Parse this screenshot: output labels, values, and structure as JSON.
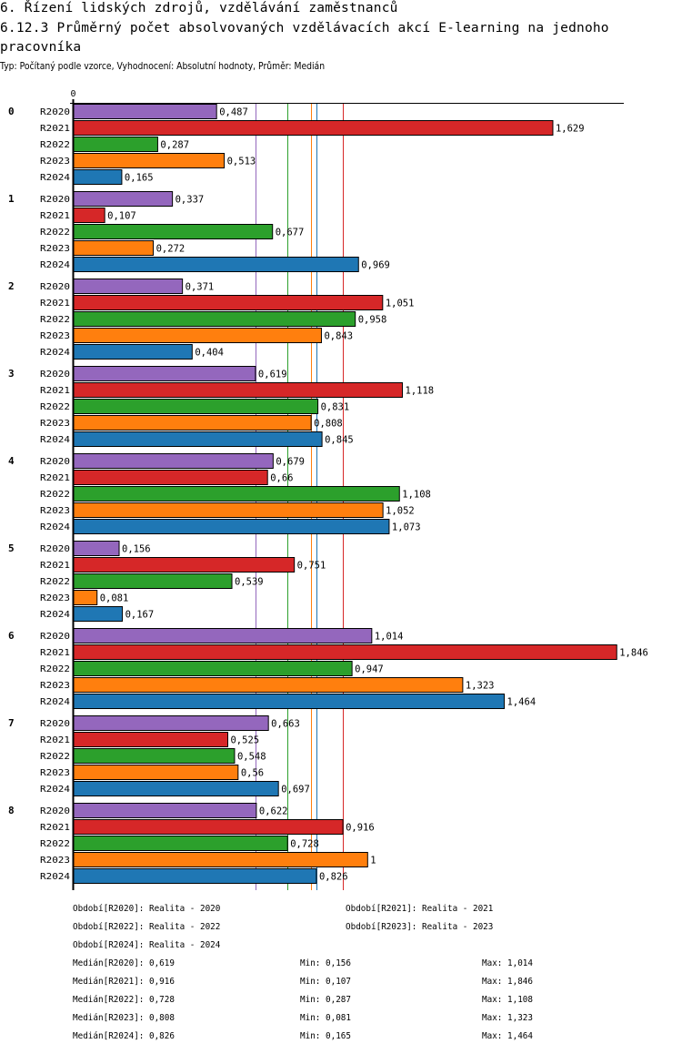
{
  "header": {
    "title": "6. Řízení lidských zdrojů, vzdělávání zaměstnanců",
    "subtitle": "6.12.3 Průměrný počet absolvovaných vzdělávacích akcí E-learning na jednoho pracovníka",
    "meta": "Typ: Počítaný podle vzorce, Vyhodnocení: Absolutní hodnoty, Průměr: Medián"
  },
  "chart_data": {
    "type": "bar",
    "orientation": "horizontal",
    "title": "6.12.3 Průměrný počet absolvovaných vzdělávacích akcí E-learning na jednoho pracovníka",
    "xlabel": "",
    "ylabel": "",
    "axis_zero_label": "0",
    "xlim": [
      0,
      1.87
    ],
    "categories": [
      "0",
      "1",
      "2",
      "3",
      "4",
      "5",
      "6",
      "7",
      "8"
    ],
    "series": [
      {
        "name": "R2020",
        "color": "#9467bd",
        "values": [
          0.487,
          0.337,
          0.371,
          0.619,
          0.679,
          0.156,
          1.014,
          0.663,
          0.622
        ],
        "labels": [
          "0,487",
          "0,337",
          "0,371",
          "0,619",
          "0,679",
          "0,156",
          "1,014",
          "0,663",
          "0,622"
        ]
      },
      {
        "name": "R2021",
        "color": "#d62728",
        "values": [
          1.629,
          0.107,
          1.051,
          1.118,
          0.66,
          0.751,
          1.846,
          0.525,
          0.916
        ],
        "labels": [
          "1,629",
          "0,107",
          "1,051",
          "1,118",
          "0,66",
          "0,751",
          "1,846",
          "0,525",
          "0,916"
        ]
      },
      {
        "name": "R2022",
        "color": "#2ca02c",
        "values": [
          0.287,
          0.677,
          0.958,
          0.831,
          1.108,
          0.539,
          0.947,
          0.548,
          0.728
        ],
        "labels": [
          "0,287",
          "0,677",
          "0,958",
          "0,831",
          "1,108",
          "0,539",
          "0,947",
          "0,548",
          "0,728"
        ]
      },
      {
        "name": "R2023",
        "color": "#ff7f0e",
        "values": [
          0.513,
          0.272,
          0.843,
          0.808,
          1.052,
          0.081,
          1.323,
          0.56,
          1
        ],
        "labels": [
          "0,513",
          "0,272",
          "0,843",
          "0,808",
          "1,052",
          "0,081",
          "1,323",
          "0,56",
          "1"
        ]
      },
      {
        "name": "R2024",
        "color": "#1f77b4",
        "values": [
          0.165,
          0.969,
          0.404,
          0.845,
          1.073,
          0.167,
          1.464,
          0.697,
          0.826
        ],
        "labels": [
          "0,165",
          "0,969",
          "0,404",
          "0,845",
          "1,073",
          "0,167",
          "1,464",
          "0,697",
          "0,826"
        ]
      }
    ],
    "medians": [
      {
        "name": "R2020",
        "value": 0.619,
        "color": "#9467bd"
      },
      {
        "name": "R2021",
        "value": 0.916,
        "color": "#d62728"
      },
      {
        "name": "R2022",
        "value": 0.728,
        "color": "#2ca02c"
      },
      {
        "name": "R2023",
        "value": 0.808,
        "color": "#ff7f0e"
      },
      {
        "name": "R2024",
        "value": 0.826,
        "color": "#1f77b4"
      }
    ],
    "grid": false,
    "legend": "bottom"
  },
  "legend": {
    "periods": [
      "Období[R2020]: Realita - 2020",
      "Období[R2021]: Realita - 2021",
      "Období[R2022]: Realita - 2022",
      "Období[R2023]: Realita - 2023",
      "Období[R2024]: Realita - 2024"
    ],
    "stats": [
      {
        "median": "Medián[R2020]: 0,619",
        "min": "Min: 0,156",
        "max": "Max: 1,014"
      },
      {
        "median": "Medián[R2021]: 0,916",
        "min": "Min: 0,107",
        "max": "Max: 1,846"
      },
      {
        "median": "Medián[R2022]: 0,728",
        "min": "Min: 0,287",
        "max": "Max: 1,108"
      },
      {
        "median": "Medián[R2023]: 0,808",
        "min": "Min: 0,081",
        "max": "Max: 1,323"
      },
      {
        "median": "Medián[R2024]: 0,826",
        "min": "Min: 0,165",
        "max": "Max: 1,464"
      }
    ]
  }
}
